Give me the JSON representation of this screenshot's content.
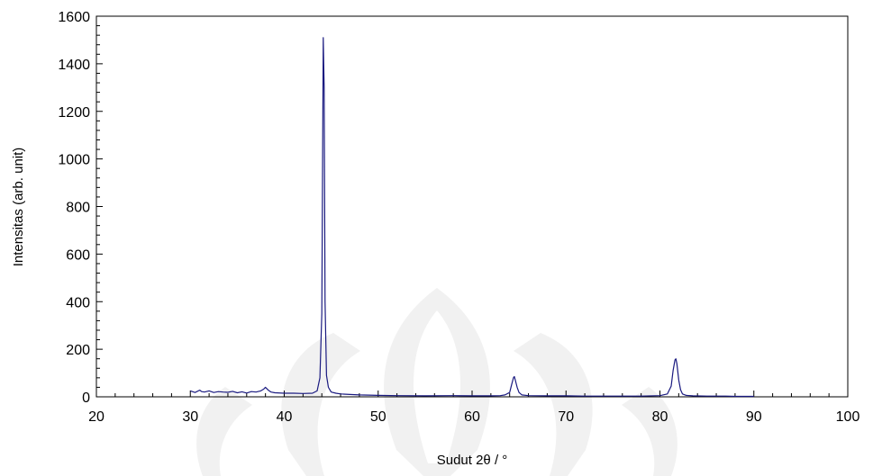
{
  "chart_data": {
    "type": "line",
    "title": "",
    "xlabel": "Sudut 2θ / °",
    "ylabel": "Intensitas (arb. unit)",
    "xlim": [
      20,
      100
    ],
    "ylim": [
      0,
      1600
    ],
    "x_ticks": [
      20,
      30,
      40,
      50,
      60,
      70,
      80,
      90,
      100
    ],
    "y_ticks": [
      0,
      200,
      400,
      600,
      800,
      1000,
      1200,
      1400,
      1600
    ],
    "x_tick_labels": [
      "20",
      "30",
      "40",
      "50",
      "60",
      "70",
      "80",
      "90",
      "100"
    ],
    "y_tick_labels": [
      "0",
      "200",
      "400",
      "600",
      "800",
      "1000",
      "1200",
      "1400",
      "1600"
    ],
    "grid": false,
    "legend": "none",
    "colors": {
      "series": "#1a1a80",
      "axis": "#000000",
      "watermark": "#d9d9d9"
    },
    "series": [
      {
        "x": [
          30,
          30.5,
          31,
          31.2,
          31.5,
          32,
          32.5,
          33,
          33.5,
          34,
          34.5,
          35,
          35.5,
          36,
          36.5,
          37,
          37.5,
          37.8,
          38,
          38.3,
          38.6,
          39,
          40,
          41,
          42,
          43,
          43.5,
          43.8,
          44.0,
          44.15,
          44.25,
          44.35,
          44.5,
          44.7,
          45,
          45.5,
          46,
          47,
          48,
          50,
          52,
          55,
          58,
          60,
          62,
          63,
          63.5,
          64,
          64.2,
          64.4,
          64.5,
          64.6,
          64.8,
          65,
          65.3,
          66,
          68,
          70,
          72,
          75,
          78,
          80,
          80.8,
          81.2,
          81.4,
          81.6,
          81.7,
          81.8,
          82.0,
          82.2,
          82.4,
          82.8,
          83.5,
          85,
          87,
          88,
          89,
          90
        ],
        "y": [
          25,
          18,
          28,
          22,
          20,
          25,
          18,
          22,
          20,
          19,
          23,
          17,
          21,
          16,
          22,
          20,
          25,
          32,
          40,
          28,
          20,
          17,
          15,
          15,
          14,
          15,
          25,
          80,
          350,
          1510,
          1300,
          400,
          90,
          40,
          20,
          15,
          12,
          10,
          8,
          6,
          5,
          4,
          5,
          4,
          4,
          5,
          8,
          18,
          50,
          80,
          85,
          70,
          40,
          18,
          8,
          5,
          4,
          4,
          3,
          3,
          3,
          5,
          12,
          45,
          110,
          155,
          160,
          140,
          70,
          30,
          12,
          6,
          4,
          3,
          3,
          2,
          2,
          2
        ]
      }
    ]
  }
}
